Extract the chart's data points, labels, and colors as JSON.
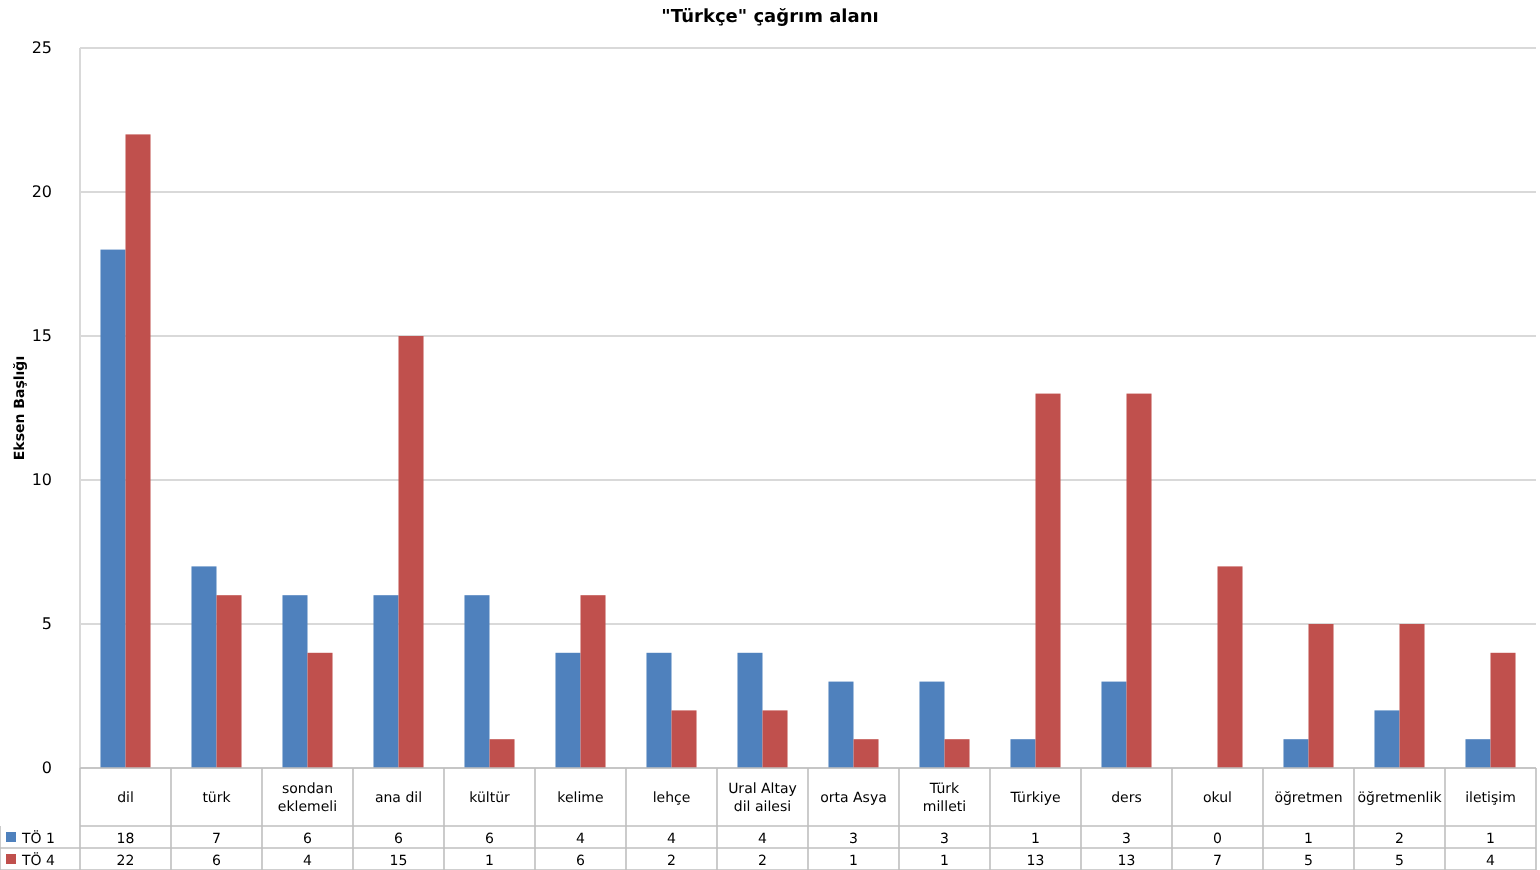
{
  "chart_data": {
    "type": "bar",
    "title": "\"Türkçe\" çağrım alanı",
    "ylabel": "Eksen Başlığı",
    "categories": [
      "dil",
      "türk",
      "sondan eklemeli",
      "ana dil",
      "kültür",
      "kelime",
      "lehçe",
      "Ural Altay dil ailesi",
      "orta Asya",
      "Türk milleti",
      "Türkiye",
      "ders",
      "okul",
      "öğretmen",
      "öğretmenlik",
      "iletişim"
    ],
    "series": [
      {
        "name": "TÖ 1",
        "color": "#4f81bd",
        "values": [
          18,
          7,
          6,
          6,
          6,
          4,
          4,
          4,
          3,
          3,
          1,
          3,
          0,
          1,
          2,
          1
        ]
      },
      {
        "name": "TÖ 4",
        "color": "#c0504d",
        "values": [
          22,
          6,
          4,
          15,
          1,
          6,
          2,
          2,
          1,
          1,
          13,
          13,
          7,
          5,
          5,
          4
        ]
      }
    ],
    "ylim": [
      0,
      25
    ],
    "yticks": [
      0,
      5,
      10,
      15,
      20,
      25
    ],
    "grid": "y",
    "legend": "bottom",
    "data_labels": true
  }
}
